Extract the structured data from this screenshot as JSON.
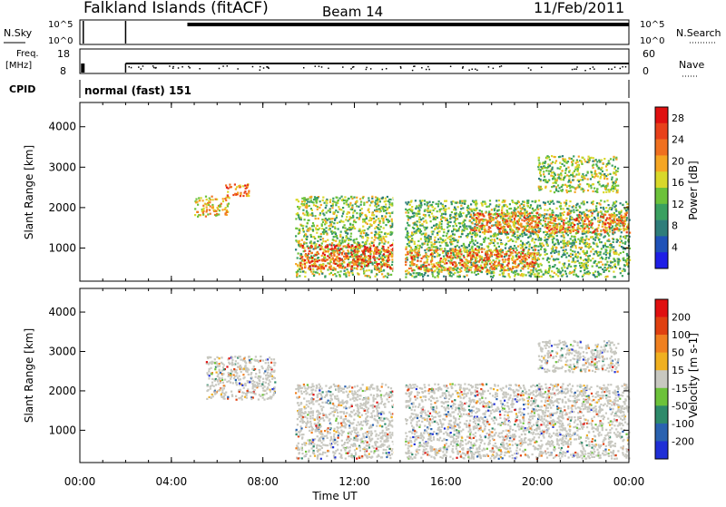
{
  "header": {
    "title": "Falkland Islands (fitACF)",
    "beam": "Beam 14",
    "date": "11/Feb/2011"
  },
  "panel_labels": {
    "nsky": "N.Sky",
    "nsearch": "N.Search",
    "freq_line1": "Freq.",
    "freq_line2": "[MHz]",
    "nave": "Nave",
    "cpid": "CPID",
    "cpid_value": "normal (fast) 151"
  },
  "noise_axis": {
    "left_ticks": [
      "10^5",
      "10^0"
    ],
    "right_ticks": [
      "10^5",
      "10^0"
    ]
  },
  "freq_axis": {
    "left_ticks": [
      "18",
      "8"
    ],
    "right_ticks": [
      "60",
      "0"
    ]
  },
  "time_axis": {
    "label": "Time UT",
    "ticks": [
      "00:00",
      "04:00",
      "08:00",
      "12:00",
      "16:00",
      "20:00",
      "00:00"
    ],
    "range_hours": [
      0,
      24
    ]
  },
  "chart_data": [
    {
      "type": "heatmap",
      "title": "",
      "quantity": "Power",
      "xlabel": "Time UT",
      "ylabel": "Slant Range [km]",
      "xlim_hours": [
        0,
        24
      ],
      "ylim_km": [
        180,
        4600
      ],
      "y_ticks": [
        1000,
        2000,
        3000,
        4000
      ],
      "colorbar": {
        "label": "Power [dB]",
        "ticks": [
          4,
          8,
          12,
          16,
          20,
          24,
          28
        ],
        "range": [
          0,
          30
        ],
        "colors": [
          "#1f1fe6",
          "#1f52b8",
          "#2e7d7a",
          "#3aa060",
          "#6cc23a",
          "#d9d82a",
          "#f5a623",
          "#f07020",
          "#e8401a",
          "#e01010"
        ]
      },
      "regions": [
        {
          "t0": 5.0,
          "t1": 6.5,
          "r0": 1800,
          "r1": 2300,
          "value": 18
        },
        {
          "t0": 6.3,
          "t1": 7.4,
          "r0": 2300,
          "r1": 2600,
          "value": 22
        },
        {
          "t0": 9.4,
          "t1": 13.7,
          "r0": 300,
          "r1": 2300,
          "value": 14
        },
        {
          "t0": 9.6,
          "t1": 13.7,
          "r0": 500,
          "r1": 1100,
          "value": 24
        },
        {
          "t0": 14.2,
          "t1": 24.0,
          "r0": 300,
          "r1": 2200,
          "value": 13
        },
        {
          "t0": 14.2,
          "t1": 20.0,
          "r0": 450,
          "r1": 1000,
          "value": 22
        },
        {
          "t0": 17.0,
          "t1": 24.0,
          "r0": 1400,
          "r1": 1900,
          "value": 22
        },
        {
          "t0": 20.0,
          "t1": 23.5,
          "r0": 2400,
          "r1": 3300,
          "value": 14
        }
      ]
    },
    {
      "type": "heatmap",
      "title": "",
      "quantity": "Velocity",
      "xlabel": "Time UT",
      "ylabel": "Slant Range [km]",
      "xlim_hours": [
        0,
        24
      ],
      "ylim_km": [
        180,
        4600
      ],
      "y_ticks": [
        1000,
        2000,
        3000,
        4000
      ],
      "colorbar": {
        "label": "Velocity [m s-1]",
        "ticks": [
          200,
          100,
          50,
          15,
          -15,
          -50,
          -100,
          -200
        ],
        "range": [
          -250,
          250
        ],
        "colors": [
          "#1f2fd6",
          "#2a62b0",
          "#2e8a6a",
          "#6cc23a",
          "#c8c8c0",
          "#f0b020",
          "#f08020",
          "#e04010",
          "#e01010"
        ]
      },
      "regions": [
        {
          "t0": 5.5,
          "t1": 8.5,
          "r0": 1800,
          "r1": 2900,
          "value": 0
        },
        {
          "t0": 9.4,
          "t1": 13.7,
          "r0": 300,
          "r1": 2200,
          "value": 0
        },
        {
          "t0": 14.2,
          "t1": 24.0,
          "r0": 300,
          "r1": 2200,
          "value": 0
        },
        {
          "t0": 20.0,
          "t1": 23.5,
          "r0": 2500,
          "r1": 3300,
          "value": 0
        }
      ]
    }
  ]
}
